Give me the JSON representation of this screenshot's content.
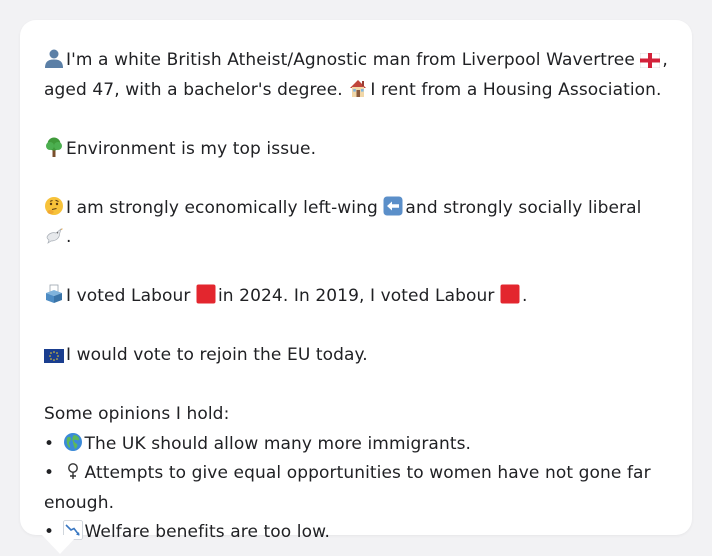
{
  "profile": {
    "intro_part1": "I'm a white British Atheist/Agnostic man from Liverpool Wavertree",
    "intro_part2": ", aged 47, with a bachelor's degree.",
    "intro_part3": "I rent from a Housing Association.",
    "top_issue": "Environment is my top issue.",
    "economics_part1": "I am strongly economically left-wing",
    "economics_part2": "and strongly socially liberal",
    "economics_part3": ".",
    "vote_part1": "I voted Labour",
    "vote_part2": "in 2024. In 2019, I voted Labour",
    "vote_part3": ".",
    "eu": "I would vote to rejoin the EU today.",
    "opinions_heading": "Some opinions I hold:",
    "opinions": [
      {
        "bullet": "•",
        "text": "The UK should allow many more immigrants."
      },
      {
        "bullet": "•",
        "text": "Attempts to give equal opportunities to women have not gone far enough."
      },
      {
        "bullet": "•",
        "text": "Welfare benefits are too low."
      }
    ]
  },
  "icons": {
    "person": "bust-in-silhouette-icon",
    "england_flag": "england-flag-icon",
    "house": "house-icon",
    "tree": "tree-icon",
    "thinking": "thinking-face-icon",
    "left_arrow": "left-arrow-icon",
    "dove": "dove-icon",
    "ballot": "ballot-box-icon",
    "labour": "red-square-icon",
    "eu_flag": "eu-flag-icon",
    "globe": "globe-icon",
    "female": "female-sign-icon",
    "chart_down": "chart-decreasing-icon"
  },
  "colors": {
    "background": "#f2f2f4",
    "card": "#ffffff",
    "text": "#202124",
    "labour_red": "#e3262e",
    "eu_blue": "#1a3e8f"
  }
}
